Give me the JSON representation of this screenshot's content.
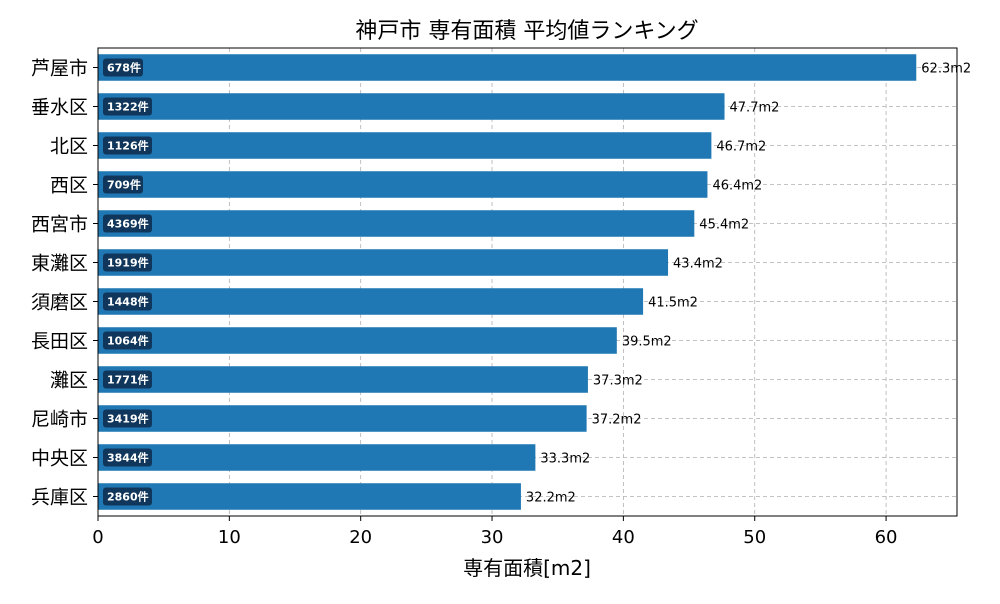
{
  "chart_data": {
    "type": "bar",
    "orientation": "horizontal",
    "title": "神戸市 専有面積 平均値ランキング",
    "xlabel": "専有面積[m2]",
    "ylabel": "",
    "xlim": [
      0,
      65.4
    ],
    "xticks": [
      0,
      10,
      20,
      30,
      40,
      50,
      60
    ],
    "grid": true,
    "categories": [
      "芦屋市",
      "垂水区",
      "北区",
      "西区",
      "西宮市",
      "東灘区",
      "須磨区",
      "長田区",
      "灘区",
      "尼崎市",
      "中央区",
      "兵庫区"
    ],
    "values": [
      62.3,
      47.7,
      46.7,
      46.4,
      45.4,
      43.4,
      41.5,
      39.5,
      37.3,
      37.2,
      33.3,
      32.2
    ],
    "value_labels": [
      "62.3m2",
      "47.7m2",
      "46.7m2",
      "46.4m2",
      "45.4m2",
      "43.4m2",
      "41.5m2",
      "39.5m2",
      "37.3m2",
      "37.2m2",
      "33.3m2",
      "32.2m2"
    ],
    "counts": [
      "678件",
      "1322件",
      "1126件",
      "709件",
      "4369件",
      "1919件",
      "1448件",
      "1064件",
      "1771件",
      "3419件",
      "3844件",
      "2860件"
    ],
    "bar_color": "#1f77b4",
    "badge_color": "#0d2a47"
  }
}
